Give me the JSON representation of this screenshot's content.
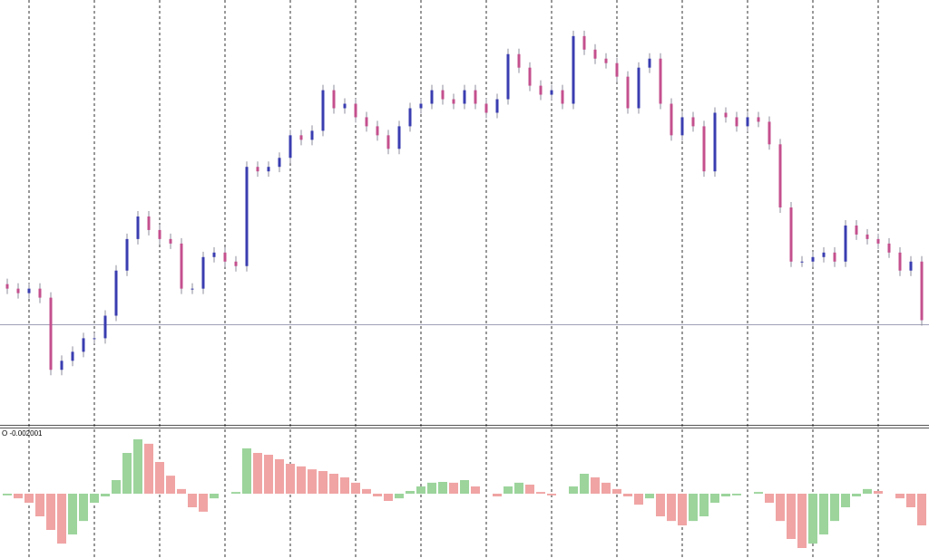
{
  "chart_data": [
    {
      "type": "candlestick",
      "open": [
        155,
        150,
        145,
        150,
        140,
        60,
        70,
        80,
        95,
        95,
        120,
        170,
        205,
        230,
        215,
        205,
        200,
        150,
        150,
        185,
        190,
        180,
        175,
        285,
        280,
        285,
        295,
        320,
        315,
        325,
        370,
        350,
        355,
        340,
        330,
        320,
        305,
        330,
        350,
        355,
        370,
        360,
        355,
        370,
        355,
        345,
        360,
        410,
        395,
        375,
        365,
        370,
        355,
        430,
        415,
        405,
        400,
        385,
        350,
        395,
        405,
        355,
        320,
        340,
        330,
        280,
        345,
        340,
        330,
        340,
        335,
        310,
        240,
        180,
        180,
        185,
        190,
        180,
        220,
        210,
        205,
        200,
        190,
        170,
        180
      ],
      "high": [
        161,
        156,
        156,
        156,
        146,
        76,
        86,
        101,
        101,
        126,
        176,
        211,
        236,
        236,
        221,
        211,
        206,
        156,
        191,
        196,
        196,
        186,
        291,
        291,
        291,
        301,
        326,
        326,
        331,
        376,
        376,
        361,
        361,
        346,
        336,
        326,
        336,
        356,
        361,
        376,
        376,
        366,
        376,
        376,
        361,
        366,
        416,
        416,
        401,
        381,
        376,
        376,
        436,
        436,
        421,
        411,
        406,
        391,
        401,
        411,
        411,
        361,
        346,
        346,
        336,
        351,
        351,
        346,
        346,
        346,
        341,
        316,
        246,
        186,
        191,
        196,
        196,
        226,
        226,
        216,
        211,
        206,
        196,
        186,
        186
      ],
      "low": [
        144,
        139,
        139,
        134,
        54,
        54,
        64,
        74,
        89,
        89,
        114,
        164,
        199,
        209,
        199,
        194,
        144,
        144,
        144,
        179,
        174,
        169,
        169,
        274,
        274,
        279,
        289,
        309,
        309,
        319,
        344,
        344,
        334,
        324,
        314,
        299,
        299,
        324,
        344,
        349,
        354,
        349,
        349,
        349,
        339,
        339,
        354,
        389,
        369,
        359,
        359,
        349,
        349,
        409,
        399,
        394,
        379,
        344,
        344,
        389,
        349,
        314,
        314,
        324,
        274,
        274,
        334,
        324,
        324,
        329,
        304,
        234,
        174,
        174,
        174,
        179,
        174,
        174,
        204,
        199,
        194,
        184,
        164,
        164,
        109
      ],
      "close": [
        150,
        145,
        150,
        140,
        60,
        70,
        80,
        95,
        95,
        120,
        170,
        205,
        230,
        215,
        205,
        200,
        150,
        150,
        185,
        190,
        180,
        175,
        285,
        280,
        285,
        295,
        320,
        315,
        325,
        370,
        350,
        355,
        340,
        330,
        320,
        305,
        330,
        350,
        355,
        370,
        360,
        355,
        370,
        355,
        345,
        360,
        410,
        395,
        375,
        365,
        370,
        355,
        430,
        415,
        405,
        400,
        385,
        350,
        395,
        405,
        355,
        320,
        340,
        330,
        280,
        345,
        340,
        330,
        340,
        335,
        310,
        240,
        180,
        180,
        185,
        190,
        180,
        220,
        210,
        205,
        200,
        190,
        170,
        180,
        115
      ],
      "ylim": [
        0,
        470
      ],
      "hline": 110,
      "grid": true,
      "up_color": "#3a3db0",
      "down_color": "#c4508e",
      "wick_color": "#8c8c9c"
    },
    {
      "type": "histogram",
      "label": "O -0.002001",
      "values": [
        -0.00011,
        -0.00029,
        -0.00057,
        -0.00143,
        -0.00229,
        -0.00315,
        -0.00257,
        -0.00172,
        -0.00057,
        -0.00017,
        0.00086,
        0.00257,
        0.00343,
        0.00315,
        0.002,
        0.00114,
        0.00029,
        -0.00086,
        -0.00114,
        -0.00029,
        0,
        0.00011,
        0.00286,
        0.00257,
        0.00246,
        0.00217,
        0.00189,
        0.00172,
        0.00154,
        0.00143,
        0.00126,
        0.00103,
        0.00069,
        0.00029,
        -0.00017,
        -0.00046,
        -0.00029,
        0.00017,
        0.00046,
        0.00069,
        0.00074,
        0.00069,
        0.00086,
        0.00046,
        0,
        -0.00017,
        0.00046,
        0.00069,
        0.00057,
        0.00011,
        -0.00011,
        0,
        0.00046,
        0.00126,
        0.00103,
        0.00069,
        0.00029,
        -0.00017,
        -0.00069,
        -0.00029,
        -0.00143,
        -0.00172,
        -0.002,
        -0.00172,
        -0.00143,
        -0.00057,
        -0.00017,
        -0.00011,
        0,
        0.00011,
        -0.00057,
        -0.00172,
        -0.00286,
        -0.00343,
        -0.00315,
        -0.00257,
        -0.00172,
        -0.00086,
        -0.00017,
        0.00029,
        0.00017,
        0,
        -0.00029,
        -0.00086,
        -0.002001
      ],
      "ylim": [
        -0.00406,
        0.00406
      ],
      "grid": true,
      "up_color": "#3aaa3a",
      "down_color": "#e04848"
    }
  ]
}
